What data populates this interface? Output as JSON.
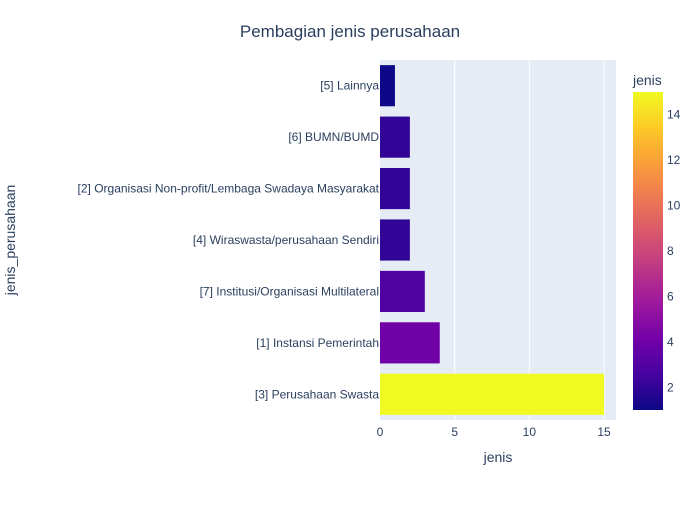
{
  "chart_data": {
    "type": "bar",
    "orientation": "horizontal",
    "title": "Pembagian jenis perusahaan",
    "xlabel": "jenis",
    "ylabel": "jenis_perusahaan",
    "categories": [
      "[5] Lainnya",
      "[6] BUMN/BUMD",
      "[2] Organisasi Non-profit/Lembaga Swadaya Masyarakat",
      "[4] Wiraswasta/perusahaan Sendiri",
      "[7] Institusi/Organisasi Multilateral",
      "[1] Instansi Pemerintah",
      "[3] Perusahaan Swasta"
    ],
    "values": [
      1,
      2,
      2,
      2,
      3,
      4,
      15
    ],
    "xlim": [
      0,
      15.8
    ],
    "xticks": [
      "0",
      "5",
      "10",
      "15"
    ],
    "xtick_values": [
      0,
      5,
      10,
      15
    ],
    "colorbar": {
      "title": "jenis",
      "range": [
        1,
        15
      ],
      "ticks": [
        "2",
        "4",
        "6",
        "8",
        "10",
        "12",
        "14"
      ],
      "tick_values": [
        2,
        4,
        6,
        8,
        10,
        12,
        14
      ],
      "colorscale": [
        "#0d0887",
        "#46039f",
        "#7201a8",
        "#9c179e",
        "#bd3786",
        "#d8576b",
        "#ed7953",
        "#fb9f3a",
        "#fdca26",
        "#f0f921"
      ]
    },
    "plot_bg": "#e5ecf6",
    "grid": true
  }
}
